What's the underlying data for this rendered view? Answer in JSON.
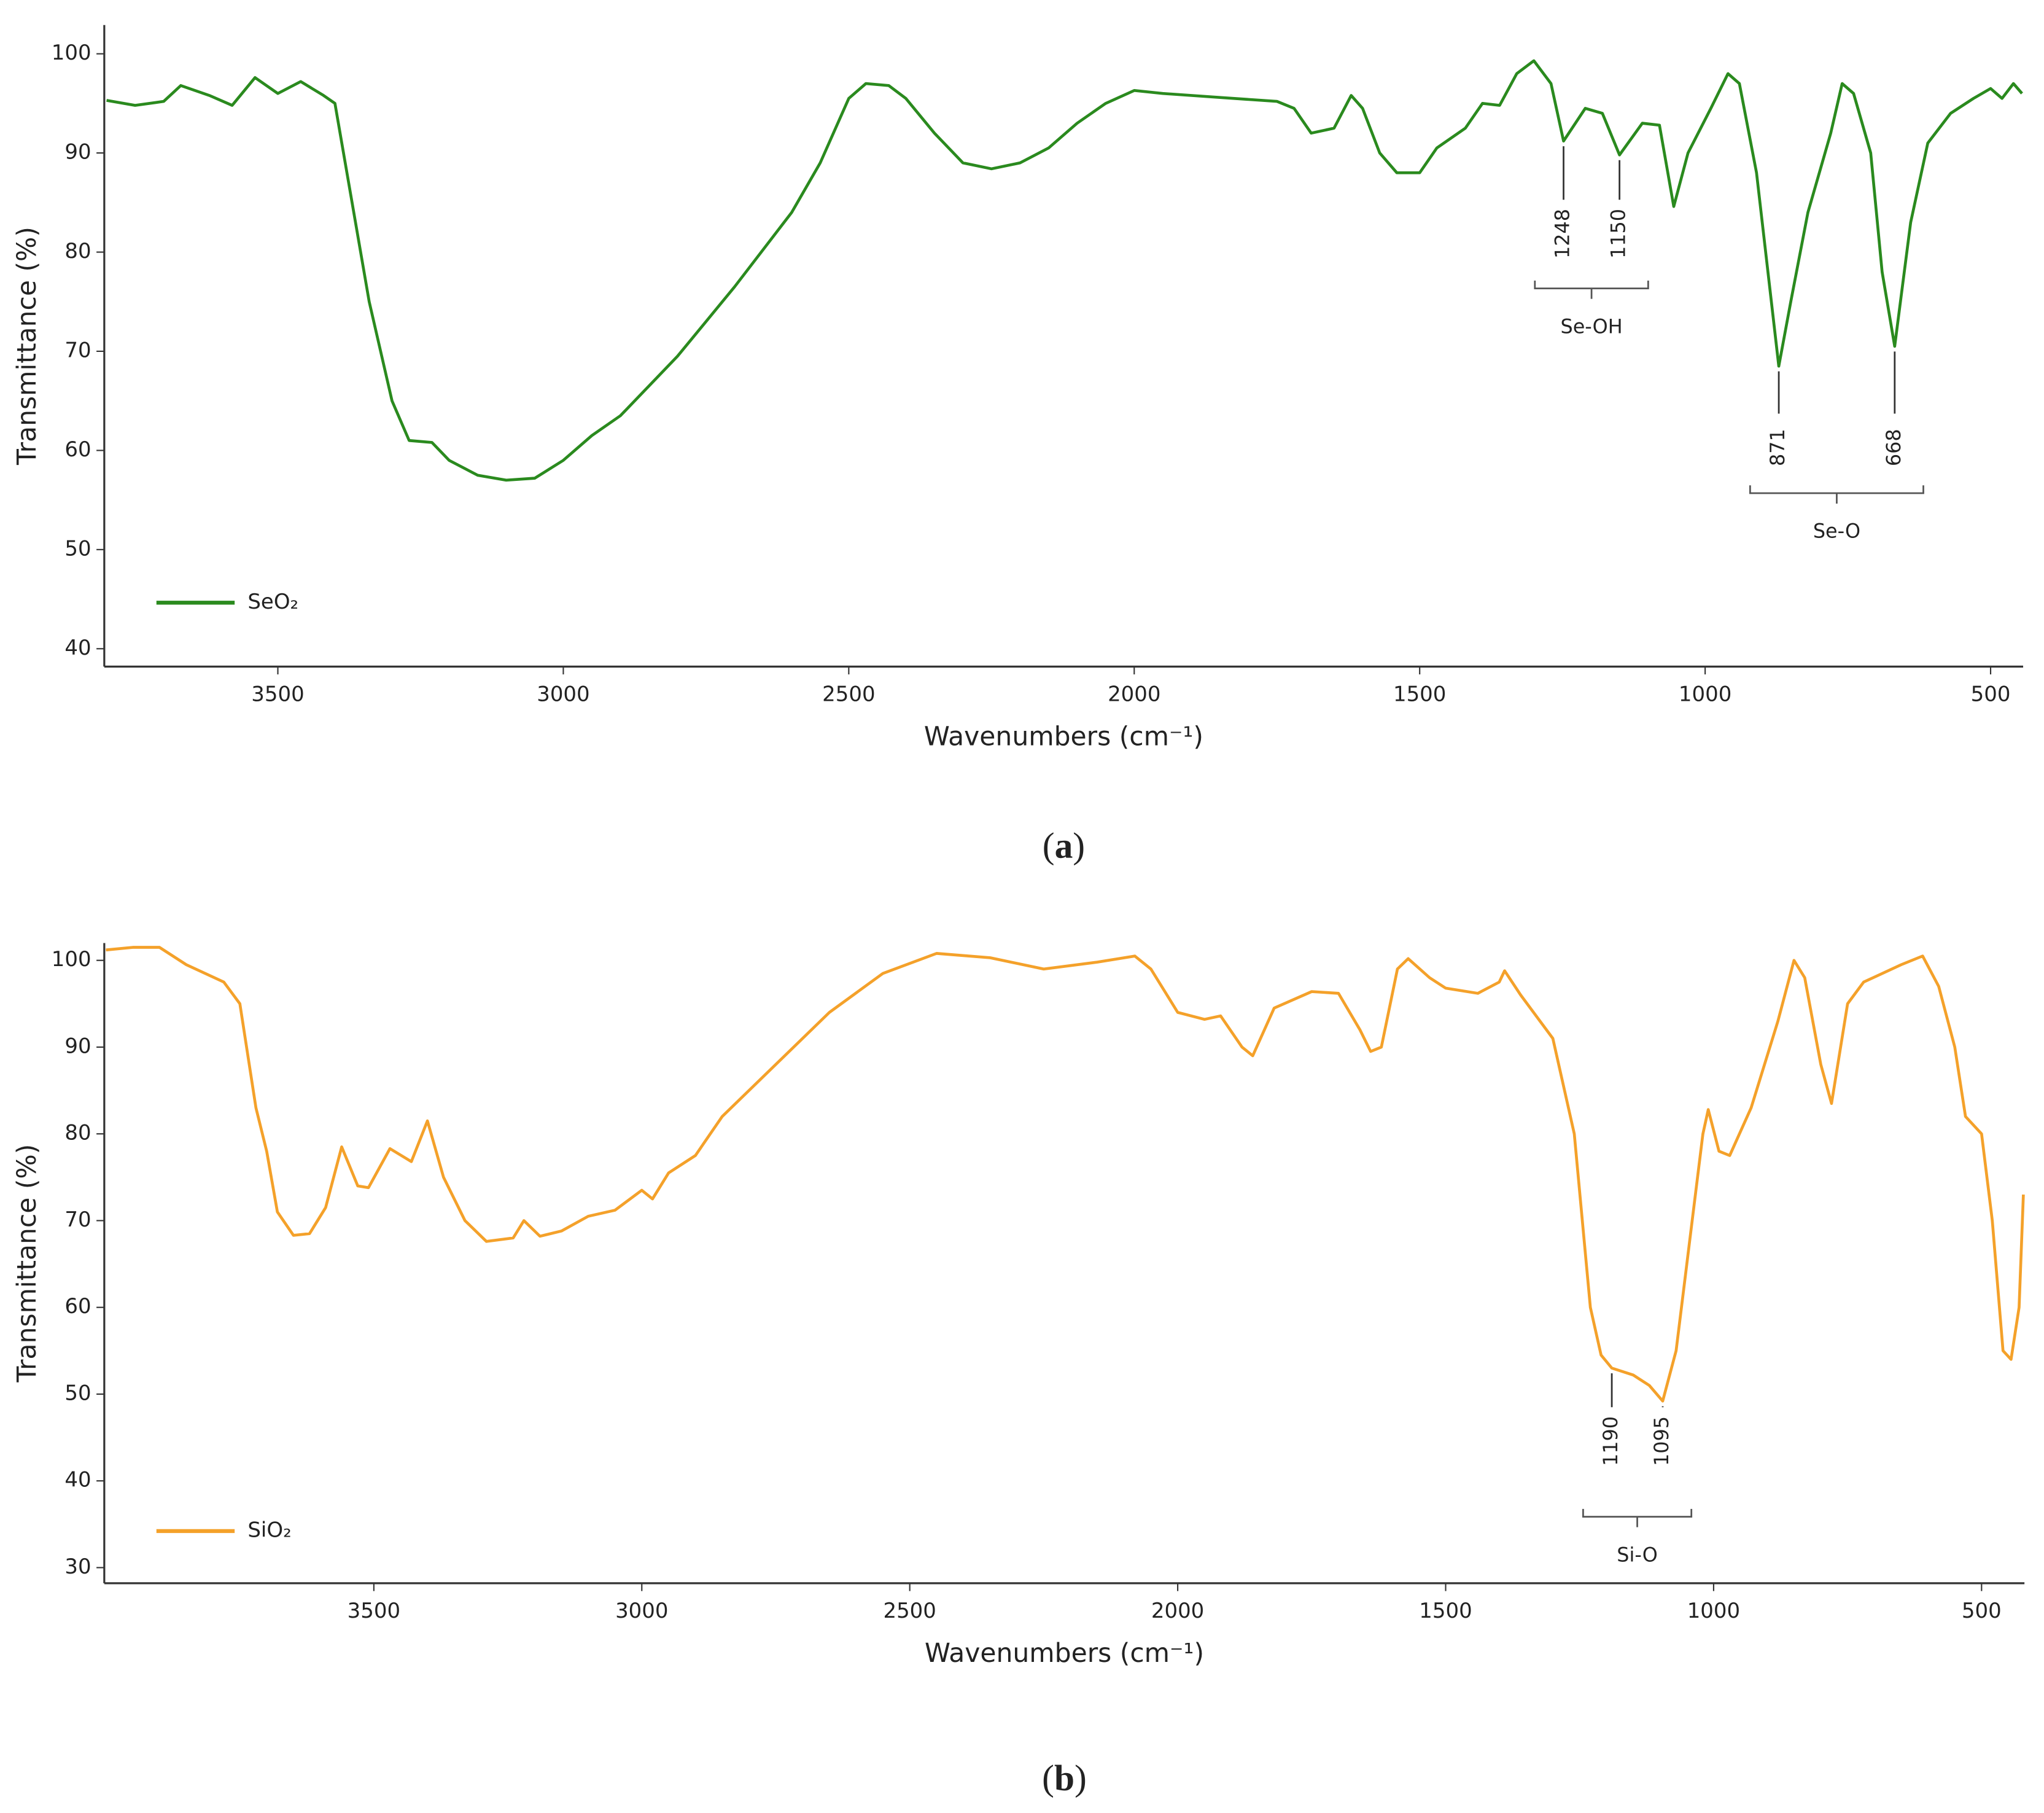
{
  "chart_data": [
    {
      "type": "line",
      "panel": "(a)",
      "xlabel": "Wavenumbers (cm⁻¹)",
      "ylabel": "Transmittance (%)",
      "xlim": [
        3804,
        443
      ],
      "ylim": [
        38.2,
        102.9
      ],
      "xticks": [
        3500,
        3000,
        2500,
        2000,
        1500,
        1000,
        500
      ],
      "yticks": [
        40,
        50,
        60,
        70,
        80,
        90,
        100
      ],
      "x": [
        3800,
        3750,
        3700,
        3670,
        3620,
        3580,
        3540,
        3500,
        3460,
        3420,
        3400,
        3370,
        3340,
        3300,
        3270,
        3230,
        3200,
        3150,
        3100,
        3050,
        3000,
        2950,
        2900,
        2850,
        2800,
        2700,
        2600,
        2550,
        2500,
        2470,
        2430,
        2400,
        2350,
        2300,
        2250,
        2200,
        2150,
        2100,
        2050,
        2000,
        1950,
        1850,
        1750,
        1720,
        1690,
        1650,
        1620,
        1600,
        1570,
        1540,
        1500,
        1470,
        1420,
        1390,
        1360,
        1330,
        1300,
        1270,
        1248,
        1210,
        1180,
        1150,
        1110,
        1080,
        1055,
        1030,
        990,
        960,
        940,
        910,
        871,
        850,
        820,
        780,
        760,
        740,
        710,
        690,
        668,
        640,
        610,
        570,
        530,
        500,
        480,
        460,
        445
      ],
      "series": [
        {
          "name": "SeO₂",
          "color": "#2a8a1e",
          "values": [
            95.3,
            94.8,
            95.2,
            96.8,
            95.8,
            94.8,
            97.6,
            96,
            97.2,
            95.8,
            95,
            85,
            75,
            65,
            61,
            60.8,
            59,
            57.5,
            57,
            57.2,
            59,
            61.5,
            63.5,
            66.5,
            69.5,
            76.5,
            84,
            89,
            95.5,
            97,
            96.8,
            95.5,
            92,
            89,
            88.4,
            89,
            90.5,
            93,
            95,
            96.3,
            96,
            95.6,
            95.2,
            94.5,
            92,
            92.5,
            95.8,
            94.5,
            90,
            88,
            88,
            90.5,
            92.5,
            95,
            94.8,
            98,
            99.3,
            97,
            91.2,
            94.5,
            94,
            89.8,
            93,
            92.8,
            84.6,
            90,
            94.5,
            98,
            97,
            88,
            68.5,
            75,
            84,
            92,
            97,
            96,
            90,
            78,
            70.5,
            83,
            91,
            94,
            95.5,
            96.5,
            95.5,
            97,
            96
          ]
        }
      ],
      "legend": "lower left",
      "peak_groups": [
        {
          "label": "Se-OH",
          "peaks": [
            1248,
            1150
          ]
        },
        {
          "label": "Se-O",
          "peaks": [
            871,
            668
          ]
        }
      ]
    },
    {
      "type": "line",
      "panel": "(b)",
      "xlabel": "Wavenumbers (cm⁻¹)",
      "ylabel": "Transmittance (%)",
      "xlim": [
        4003,
        420
      ],
      "ylim": [
        28.2,
        102
      ],
      "xticks": [
        3500,
        3000,
        2500,
        2000,
        1500,
        1000,
        500
      ],
      "yticks": [
        30,
        40,
        50,
        60,
        70,
        80,
        90,
        100
      ],
      "x": [
        4000,
        3950,
        3900,
        3850,
        3780,
        3750,
        3720,
        3700,
        3680,
        3650,
        3620,
        3590,
        3560,
        3530,
        3510,
        3470,
        3430,
        3400,
        3370,
        3330,
        3290,
        3240,
        3220,
        3190,
        3150,
        3100,
        3050,
        3000,
        2980,
        2950,
        2900,
        2850,
        2750,
        2650,
        2550,
        2450,
        2350,
        2250,
        2150,
        2080,
        2050,
        2000,
        1950,
        1920,
        1880,
        1860,
        1820,
        1750,
        1700,
        1660,
        1640,
        1620,
        1590,
        1570,
        1530,
        1500,
        1440,
        1400,
        1390,
        1360,
        1300,
        1260,
        1230,
        1210,
        1190,
        1150,
        1120,
        1095,
        1070,
        1040,
        1020,
        1010,
        990,
        970,
        930,
        880,
        850,
        830,
        800,
        780,
        750,
        720,
        650,
        610,
        580,
        550,
        530,
        500,
        480,
        460,
        445,
        430,
        422
      ],
      "series": [
        {
          "name": "SiO₂",
          "color": "#f4a12a",
          "values": [
            101.2,
            101.5,
            101.5,
            99.5,
            97.5,
            95,
            83,
            78,
            71,
            68.3,
            68.5,
            71.5,
            78.5,
            74,
            73.8,
            78.3,
            76.8,
            81.5,
            75,
            70,
            67.6,
            68,
            70,
            68.2,
            68.8,
            70.5,
            71.2,
            73.5,
            72.5,
            75.5,
            77.5,
            82,
            88,
            94,
            98.5,
            100.8,
            100.3,
            99,
            99.8,
            100.5,
            99,
            94,
            93.2,
            93.6,
            90,
            89,
            94.5,
            96.4,
            96.2,
            92,
            89.5,
            90,
            99,
            100.2,
            98,
            96.8,
            96.2,
            97.5,
            98.8,
            96,
            91,
            80,
            60,
            54.5,
            53,
            52.2,
            51,
            49.2,
            55,
            70,
            80,
            82.8,
            78,
            77.5,
            83,
            93,
            100,
            98,
            88,
            83.5,
            95,
            97.5,
            99.5,
            100.5,
            97,
            90,
            82,
            80,
            70,
            55,
            54,
            60,
            73
          ]
        }
      ],
      "legend": "lower left",
      "peak_groups": [
        {
          "label": "Si-O",
          "peaks": [
            1190,
            1095
          ]
        }
      ]
    }
  ]
}
